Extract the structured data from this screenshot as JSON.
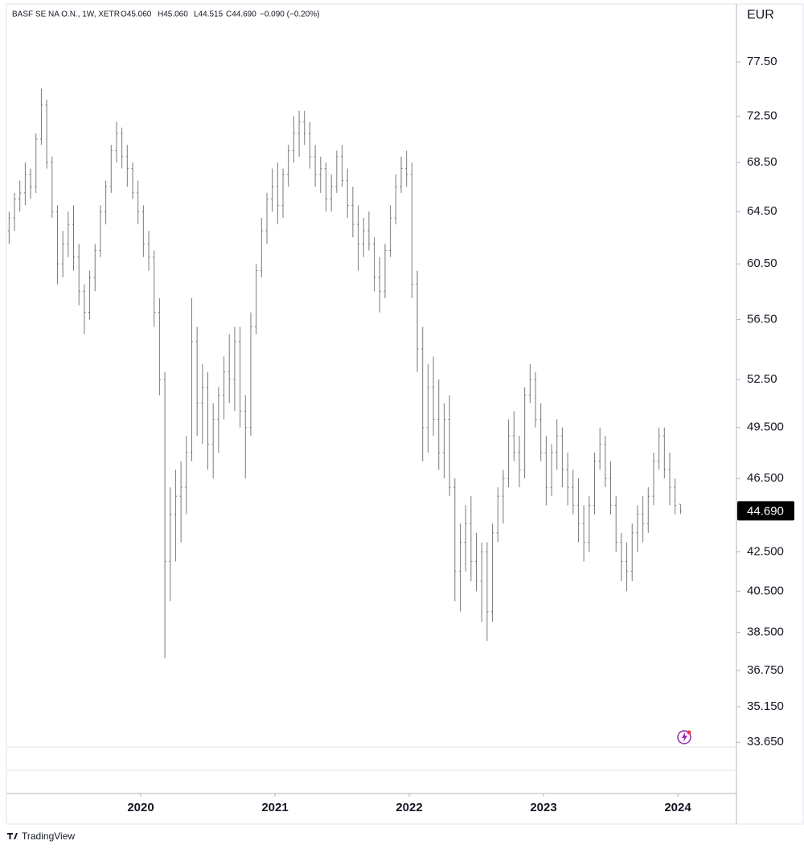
{
  "chart_data": {
    "type": "ohlc",
    "header": {
      "symbol": "BASF SE NA O.N., 1W, XETR",
      "open": "O45.060",
      "high": "H45.060",
      "low": "L44.515",
      "close": "C44.690",
      "change": "−0.090 (−0.20%)"
    },
    "currency": "EUR",
    "branding": "TradingView",
    "log_scale": true,
    "color": "#7a7a7a",
    "last_price": {
      "value": 44.69,
      "label": "44.690"
    },
    "xlim": [
      2019.0,
      2024.437
    ],
    "xticks": [
      2020,
      2021,
      2022,
      2023,
      2024
    ],
    "ylim": [
      31.6,
      83.2
    ],
    "yticks": [
      {
        "value": 77.5,
        "label": "77.50"
      },
      {
        "value": 72.5,
        "label": "72.50"
      },
      {
        "value": 68.5,
        "label": "68.50"
      },
      {
        "value": 64.5,
        "label": "64.50"
      },
      {
        "value": 60.5,
        "label": "60.50"
      },
      {
        "value": 56.5,
        "label": "56.50"
      },
      {
        "value": 52.5,
        "label": "52.50"
      },
      {
        "value": 49.5,
        "label": "49.500"
      },
      {
        "value": 46.5,
        "label": "46.500"
      },
      {
        "value": 42.5,
        "label": "42.500"
      },
      {
        "value": 40.5,
        "label": "40.500"
      },
      {
        "value": 38.5,
        "label": "38.500"
      },
      {
        "value": 36.75,
        "label": "36.750"
      },
      {
        "value": 35.15,
        "label": "35.150"
      },
      {
        "value": 33.65,
        "label": "33.650"
      }
    ],
    "x": [
      2019.02,
      2019.06,
      2019.1,
      2019.14,
      2019.18,
      2019.22,
      2019.26,
      2019.3,
      2019.34,
      2019.38,
      2019.42,
      2019.46,
      2019.5,
      2019.54,
      2019.58,
      2019.62,
      2019.66,
      2019.7,
      2019.74,
      2019.78,
      2019.82,
      2019.86,
      2019.9,
      2019.94,
      2019.98,
      2020.02,
      2020.06,
      2020.1,
      2020.14,
      2020.18,
      2020.22,
      2020.26,
      2020.3,
      2020.34,
      2020.38,
      2020.42,
      2020.46,
      2020.5,
      2020.54,
      2020.58,
      2020.62,
      2020.66,
      2020.7,
      2020.74,
      2020.78,
      2020.82,
      2020.86,
      2020.9,
      2020.94,
      2020.98,
      2021.02,
      2021.06,
      2021.1,
      2021.14,
      2021.18,
      2021.22,
      2021.26,
      2021.3,
      2021.34,
      2021.38,
      2021.42,
      2021.46,
      2021.5,
      2021.54,
      2021.58,
      2021.62,
      2021.66,
      2021.7,
      2021.74,
      2021.78,
      2021.82,
      2021.86,
      2021.9,
      2021.94,
      2021.98,
      2022.02,
      2022.06,
      2022.1,
      2022.14,
      2022.18,
      2022.22,
      2022.26,
      2022.3,
      2022.34,
      2022.38,
      2022.42,
      2022.46,
      2022.5,
      2022.54,
      2022.58,
      2022.62,
      2022.66,
      2022.7,
      2022.74,
      2022.78,
      2022.82,
      2022.86,
      2022.9,
      2022.94,
      2022.98,
      2023.02,
      2023.06,
      2023.1,
      2023.14,
      2023.18,
      2023.22,
      2023.26,
      2023.3,
      2023.34,
      2023.38,
      2023.42,
      2023.46,
      2023.5,
      2023.54,
      2023.58,
      2023.62,
      2023.66,
      2023.7,
      2023.74,
      2023.78,
      2023.82,
      2023.86,
      2023.9,
      2023.94,
      2023.98,
      2024.02
    ],
    "open": [
      63,
      64,
      65.5,
      66,
      67.5,
      66.5,
      70.5,
      73.5,
      68.5,
      64.5,
      60.5,
      62,
      63.5,
      61,
      58.5,
      57,
      59.5,
      61.5,
      64.5,
      66.5,
      69.5,
      71,
      69,
      68,
      66,
      64.5,
      62,
      61,
      57,
      52.5,
      42,
      44.5,
      45.5,
      46,
      48,
      55,
      51,
      52,
      48.5,
      50,
      51.5,
      53,
      52.5,
      55,
      50.5,
      49.5,
      56,
      60,
      63,
      65.5,
      66.5,
      65,
      67.5,
      69.5,
      71,
      72,
      71,
      69,
      67.5,
      68,
      65.5,
      66.5,
      69,
      67,
      65,
      63.5,
      62,
      63,
      62,
      59.5,
      58.5,
      61.5,
      64,
      66.5,
      68,
      67.5,
      59,
      54.5,
      49.5,
      52,
      50,
      48,
      50,
      46,
      41.5,
      43,
      44,
      42,
      41,
      42.5,
      39.5,
      43.5,
      45.5,
      46.5,
      49,
      48,
      47,
      51.5,
      52.5,
      50,
      48,
      46,
      48,
      49,
      47,
      46,
      45,
      44,
      43,
      45,
      47.5,
      48.5,
      46.5,
      45,
      43,
      42,
      41.5,
      43.5,
      44.5,
      44,
      45.5,
      47.5,
      49,
      47,
      46,
      45.06
    ],
    "high": [
      64.5,
      66,
      67,
      68.5,
      68,
      71,
      75,
      74,
      69,
      65,
      63,
      64.5,
      65,
      62,
      59,
      60,
      62,
      65,
      67,
      70,
      72,
      71.5,
      70,
      68.5,
      67,
      65,
      63,
      61.5,
      58,
      53,
      46,
      47,
      47.5,
      49,
      58,
      56,
      53.5,
      53,
      51,
      52,
      54,
      55.5,
      56,
      56,
      51.5,
      57,
      60.5,
      64,
      66,
      68,
      68.5,
      68,
      70,
      72.5,
      73,
      73,
      72,
      70,
      69,
      68.5,
      67.5,
      69.5,
      70,
      68,
      66.5,
      65,
      64,
      64.5,
      62.5,
      61,
      62,
      65,
      67.5,
      69,
      69.5,
      68.5,
      60,
      56,
      53.5,
      54,
      52.5,
      51,
      51.5,
      46.5,
      44,
      45,
      45.5,
      43.5,
      43,
      43,
      44,
      46,
      47,
      50,
      50.5,
      49,
      52,
      53.5,
      53,
      51,
      49,
      48.5,
      50,
      49.5,
      48,
      47,
      46.5,
      45,
      45.5,
      48,
      49.5,
      49,
      47.5,
      45.5,
      43.5,
      43,
      44,
      45,
      45.5,
      46,
      48,
      49.5,
      49.5,
      48,
      46.5,
      45.06
    ],
    "low": [
      62,
      63,
      64.5,
      65,
      65.5,
      66,
      70,
      68,
      64,
      59,
      59.5,
      61,
      60,
      57.5,
      55.5,
      56.5,
      58.5,
      61,
      63.5,
      66,
      68.5,
      68,
      66.5,
      65.5,
      63.5,
      61,
      60,
      56,
      51.5,
      37.3,
      40,
      42,
      43,
      44.5,
      47.5,
      49,
      48.5,
      47,
      46.5,
      48,
      50,
      51,
      50.5,
      49.5,
      46.5,
      49,
      55.5,
      59.5,
      62,
      64.5,
      63.5,
      64,
      66.5,
      68.5,
      69,
      70,
      68,
      66.5,
      66,
      64.5,
      64.5,
      66,
      66.5,
      64,
      62.5,
      60,
      61,
      61.5,
      58.5,
      57,
      58,
      61,
      63.5,
      66,
      66.5,
      58,
      53,
      47.5,
      48,
      49,
      47,
      46.5,
      45.5,
      40,
      39.5,
      41.5,
      41,
      40.5,
      39,
      38.1,
      39,
      43,
      44,
      46,
      47.5,
      46,
      46.5,
      51,
      49.5,
      47.5,
      45,
      45.5,
      47,
      46,
      45,
      44.5,
      43,
      42,
      42.5,
      44.5,
      47,
      46,
      44.5,
      42.5,
      41,
      40.5,
      41,
      42.5,
      43,
      43.5,
      45,
      47,
      46.5,
      45,
      44.5,
      44.515
    ],
    "close": [
      64,
      65.5,
      66,
      67.5,
      66.5,
      70.5,
      73.5,
      68.5,
      64.5,
      60.5,
      62,
      63.5,
      61,
      58.5,
      57,
      59.5,
      61.5,
      64.5,
      66.5,
      69.5,
      71,
      69,
      68,
      66,
      64.5,
      62,
      61,
      57,
      52.5,
      42,
      44.5,
      45.5,
      46,
      48,
      55,
      51,
      52,
      48.5,
      50,
      51.5,
      53,
      52.5,
      55,
      50.5,
      49.5,
      56,
      60,
      63,
      65.5,
      66.5,
      65,
      67.5,
      69.5,
      71,
      72,
      71,
      69,
      67.5,
      68,
      65.5,
      66.5,
      69,
      67,
      65,
      63.5,
      62,
      63,
      62,
      59.5,
      58.5,
      61.5,
      64,
      66.5,
      68,
      67.5,
      59,
      54.5,
      49.5,
      52,
      50,
      48,
      50,
      46,
      41.5,
      43,
      44,
      42,
      41,
      42.5,
      39.5,
      43.5,
      45.5,
      46.5,
      49,
      48,
      47,
      51.5,
      52.5,
      50,
      48,
      46,
      48,
      49,
      47,
      46,
      45,
      44,
      43,
      45,
      47.5,
      48.5,
      46.5,
      45,
      43,
      42,
      41.5,
      43.5,
      44.5,
      44,
      45.5,
      47.5,
      49,
      47,
      46,
      45,
      44.69
    ]
  }
}
